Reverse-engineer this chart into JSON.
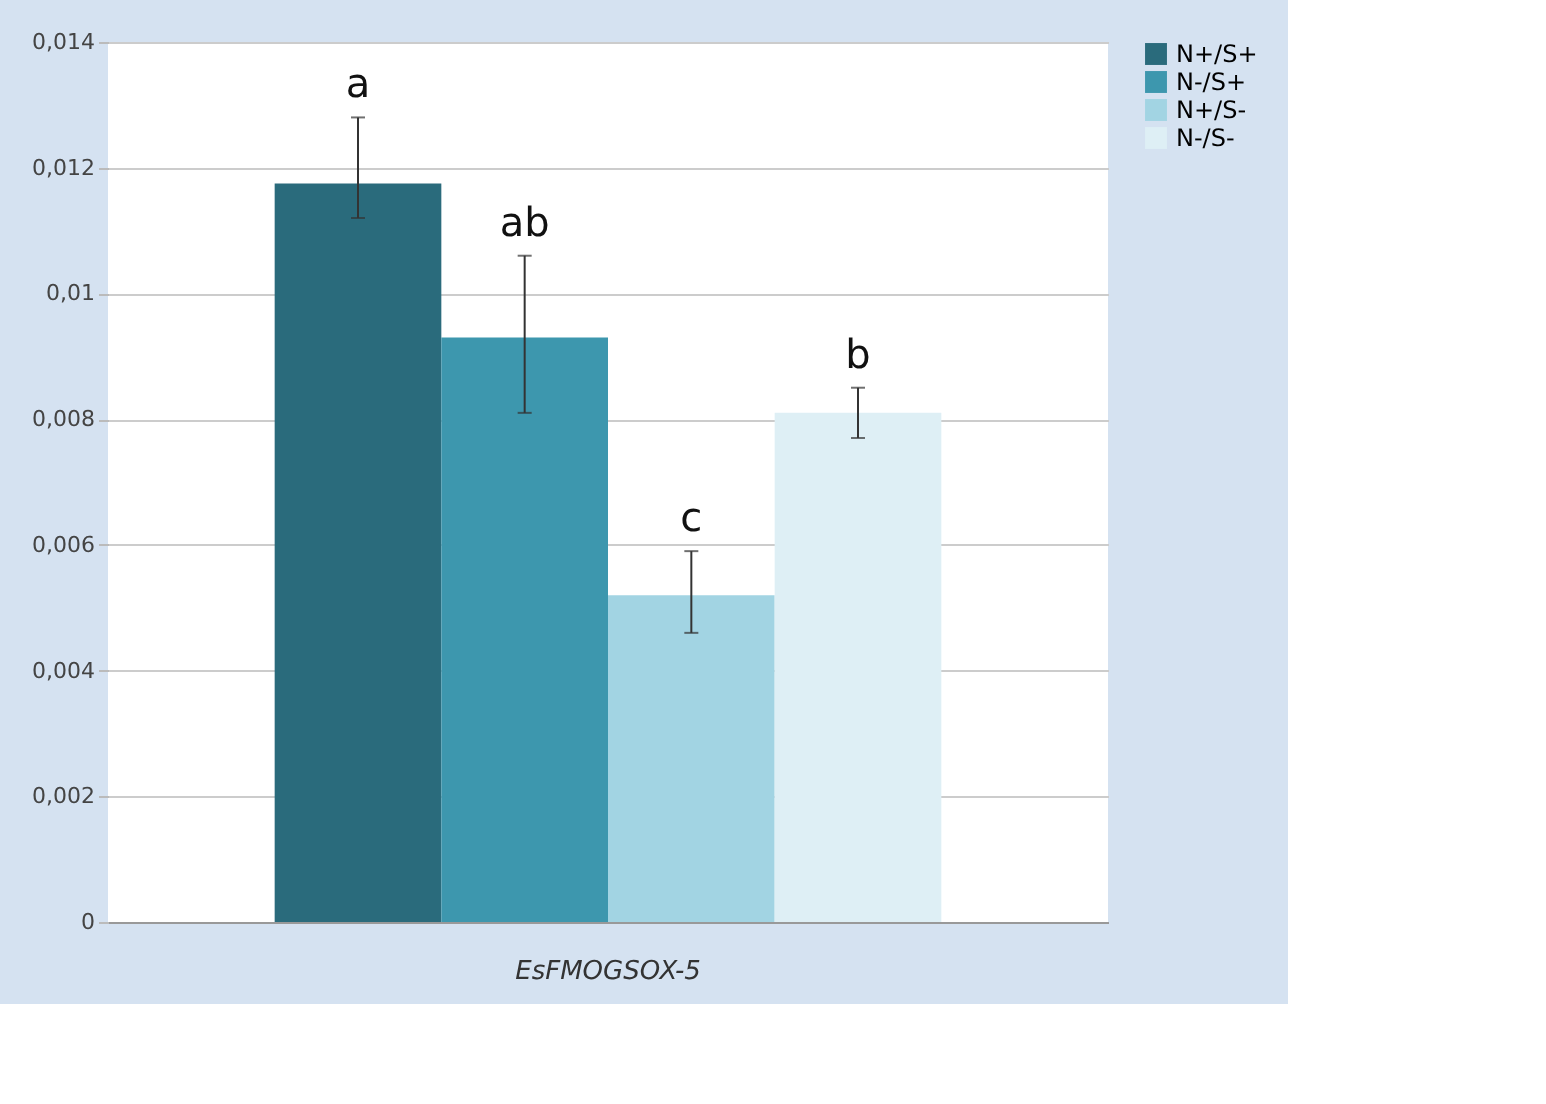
{
  "chart_data": {
    "type": "bar",
    "categories": [
      "EsFMOGSOX-5"
    ],
    "series": [
      {
        "name": "N+/S+",
        "color": "#2a6b7c",
        "values": [
          0.01175
        ],
        "errors": [
          [
            0.0112,
            0.0128
          ]
        ]
      },
      {
        "name": "N-/S+",
        "color": "#3d97ae",
        "values": [
          0.0093
        ],
        "errors": [
          [
            0.0081,
            0.0106
          ]
        ]
      },
      {
        "name": "N+/S-",
        "color": "#a2d4e3",
        "values": [
          0.0052
        ],
        "errors": [
          [
            0.0046,
            0.0059
          ]
        ]
      },
      {
        "name": "N-/S-",
        "color": "#deeff5",
        "values": [
          0.0081
        ],
        "errors": [
          [
            0.0077,
            0.0085
          ]
        ]
      }
    ],
    "annotations": [
      "a",
      "ab",
      "c",
      "b"
    ],
    "ylim": [
      0,
      0.014
    ],
    "yticks": [
      0,
      {
        "value": 0.002,
        "label": "0,002"
      },
      {
        "value": 0.004,
        "label": "0,004"
      },
      {
        "value": 0.006,
        "label": "0,006"
      },
      {
        "value": 0.008,
        "label": "0,008"
      },
      {
        "value": 0.01,
        "label": "0,01"
      },
      {
        "value": 0.012,
        "label": "0,012"
      },
      {
        "value": 0.014,
        "label": "0,014"
      }
    ],
    "grid": "y",
    "legend": "right"
  }
}
